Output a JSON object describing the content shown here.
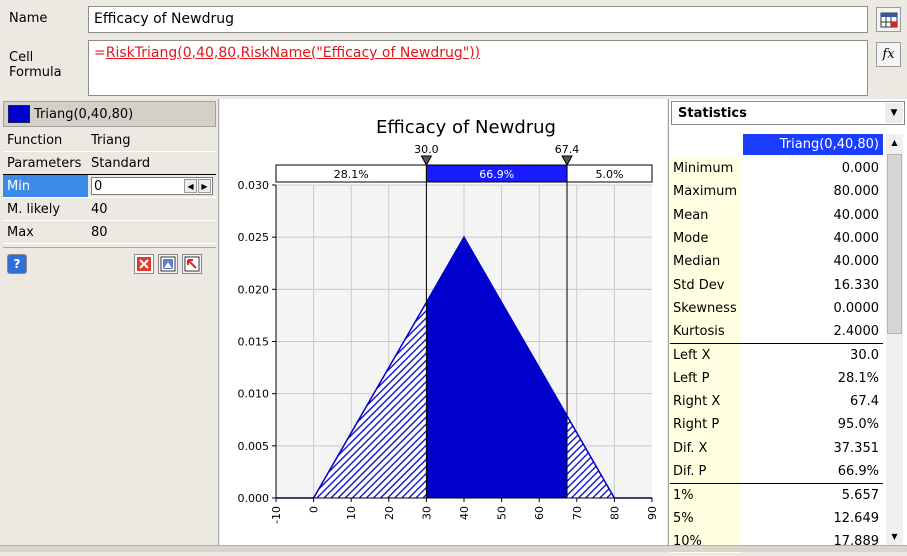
{
  "top": {
    "name_label": "Name",
    "name_value": "Efficacy of Newdrug",
    "cell_label_1": "Cell",
    "cell_label_2": "Formula",
    "formula_eq": "=",
    "formula_value": "RiskTriang(0,40,80,RiskName(\"Efficacy of Newdrug\"))",
    "fx_label": "fx"
  },
  "left_panel": {
    "dist_label": "Triang(0,40,80)",
    "swatch_color": "#0000cc",
    "rows": [
      {
        "key": "Function",
        "value": "Triang"
      },
      {
        "key": "Parameters",
        "value": "Standard"
      },
      {
        "key": "Min",
        "value": "0"
      },
      {
        "key": "M. likely",
        "value": "40"
      },
      {
        "key": "Max",
        "value": "80"
      }
    ]
  },
  "chart_data": {
    "type": "area",
    "title": "Efficacy of Newdrug",
    "distribution": "Triang(0,40,80)",
    "x": [
      -10,
      0,
      40,
      80,
      90
    ],
    "y": [
      0,
      0,
      0.025,
      0,
      0
    ],
    "xlim": [
      -10,
      90
    ],
    "ylim": [
      0,
      0.03
    ],
    "xticks": [
      "-10",
      "0",
      "10",
      "20",
      "30",
      "40",
      "50",
      "60",
      "70",
      "80",
      "90"
    ],
    "yticks": [
      "0.000",
      "0.005",
      "0.010",
      "0.015",
      "0.020",
      "0.025",
      "0.030"
    ],
    "left_delimiter": "30.0",
    "right_delimiter": "67.4",
    "left_x": 30.0,
    "right_x": 67.4,
    "band_labels": [
      "28.1%",
      "66.9%",
      "5.0%"
    ],
    "fill_color": "#0000cc",
    "grid": true
  },
  "stats": {
    "header": "Statistics",
    "column": "Triang(0,40,80)",
    "rows": [
      {
        "key": "Minimum",
        "value": "0.000"
      },
      {
        "key": "Maximum",
        "value": "80.000"
      },
      {
        "key": "Mean",
        "value": "40.000"
      },
      {
        "key": "Mode",
        "value": "40.000"
      },
      {
        "key": "Median",
        "value": "40.000"
      },
      {
        "key": "Std Dev",
        "value": "16.330"
      },
      {
        "key": "Skewness",
        "value": "0.0000"
      },
      {
        "key": "Kurtosis",
        "value": "2.4000"
      },
      {
        "key": "Left X",
        "value": "30.0"
      },
      {
        "key": "Left P",
        "value": "28.1%"
      },
      {
        "key": "Right X",
        "value": "67.4"
      },
      {
        "key": "Right P",
        "value": "95.0%"
      },
      {
        "key": "Dif. X",
        "value": "37.351"
      },
      {
        "key": "Dif. P",
        "value": "66.9%"
      },
      {
        "key": "1%",
        "value": "5.657"
      },
      {
        "key": "5%",
        "value": "12.649"
      },
      {
        "key": "10%",
        "value": "17.889"
      }
    ]
  }
}
